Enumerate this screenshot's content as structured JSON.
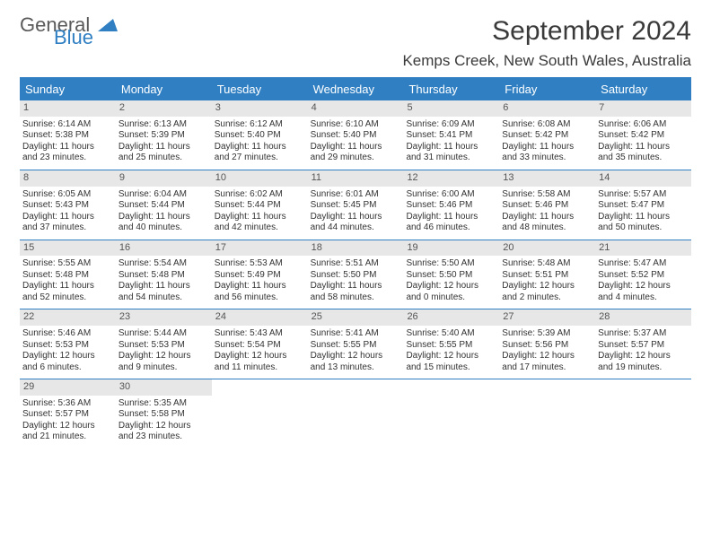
{
  "logo": {
    "part1": "General",
    "part2": "Blue"
  },
  "title": "September 2024",
  "location": "Kemps Creek, New South Wales, Australia",
  "colors": {
    "accent": "#2f7fc2",
    "dow_bg": "#2f7fc2",
    "dow_text": "#ffffff",
    "daynum_bg": "#e7e7e7",
    "text": "#333333",
    "title_color": "#3a3a3a"
  },
  "daysOfWeek": [
    "Sunday",
    "Monday",
    "Tuesday",
    "Wednesday",
    "Thursday",
    "Friday",
    "Saturday"
  ],
  "weeks": [
    [
      {
        "n": "1",
        "l1": "Sunrise: 6:14 AM",
        "l2": "Sunset: 5:38 PM",
        "l3": "Daylight: 11 hours",
        "l4": "and 23 minutes."
      },
      {
        "n": "2",
        "l1": "Sunrise: 6:13 AM",
        "l2": "Sunset: 5:39 PM",
        "l3": "Daylight: 11 hours",
        "l4": "and 25 minutes."
      },
      {
        "n": "3",
        "l1": "Sunrise: 6:12 AM",
        "l2": "Sunset: 5:40 PM",
        "l3": "Daylight: 11 hours",
        "l4": "and 27 minutes."
      },
      {
        "n": "4",
        "l1": "Sunrise: 6:10 AM",
        "l2": "Sunset: 5:40 PM",
        "l3": "Daylight: 11 hours",
        "l4": "and 29 minutes."
      },
      {
        "n": "5",
        "l1": "Sunrise: 6:09 AM",
        "l2": "Sunset: 5:41 PM",
        "l3": "Daylight: 11 hours",
        "l4": "and 31 minutes."
      },
      {
        "n": "6",
        "l1": "Sunrise: 6:08 AM",
        "l2": "Sunset: 5:42 PM",
        "l3": "Daylight: 11 hours",
        "l4": "and 33 minutes."
      },
      {
        "n": "7",
        "l1": "Sunrise: 6:06 AM",
        "l2": "Sunset: 5:42 PM",
        "l3": "Daylight: 11 hours",
        "l4": "and 35 minutes."
      }
    ],
    [
      {
        "n": "8",
        "l1": "Sunrise: 6:05 AM",
        "l2": "Sunset: 5:43 PM",
        "l3": "Daylight: 11 hours",
        "l4": "and 37 minutes."
      },
      {
        "n": "9",
        "l1": "Sunrise: 6:04 AM",
        "l2": "Sunset: 5:44 PM",
        "l3": "Daylight: 11 hours",
        "l4": "and 40 minutes."
      },
      {
        "n": "10",
        "l1": "Sunrise: 6:02 AM",
        "l2": "Sunset: 5:44 PM",
        "l3": "Daylight: 11 hours",
        "l4": "and 42 minutes."
      },
      {
        "n": "11",
        "l1": "Sunrise: 6:01 AM",
        "l2": "Sunset: 5:45 PM",
        "l3": "Daylight: 11 hours",
        "l4": "and 44 minutes."
      },
      {
        "n": "12",
        "l1": "Sunrise: 6:00 AM",
        "l2": "Sunset: 5:46 PM",
        "l3": "Daylight: 11 hours",
        "l4": "and 46 minutes."
      },
      {
        "n": "13",
        "l1": "Sunrise: 5:58 AM",
        "l2": "Sunset: 5:46 PM",
        "l3": "Daylight: 11 hours",
        "l4": "and 48 minutes."
      },
      {
        "n": "14",
        "l1": "Sunrise: 5:57 AM",
        "l2": "Sunset: 5:47 PM",
        "l3": "Daylight: 11 hours",
        "l4": "and 50 minutes."
      }
    ],
    [
      {
        "n": "15",
        "l1": "Sunrise: 5:55 AM",
        "l2": "Sunset: 5:48 PM",
        "l3": "Daylight: 11 hours",
        "l4": "and 52 minutes."
      },
      {
        "n": "16",
        "l1": "Sunrise: 5:54 AM",
        "l2": "Sunset: 5:48 PM",
        "l3": "Daylight: 11 hours",
        "l4": "and 54 minutes."
      },
      {
        "n": "17",
        "l1": "Sunrise: 5:53 AM",
        "l2": "Sunset: 5:49 PM",
        "l3": "Daylight: 11 hours",
        "l4": "and 56 minutes."
      },
      {
        "n": "18",
        "l1": "Sunrise: 5:51 AM",
        "l2": "Sunset: 5:50 PM",
        "l3": "Daylight: 11 hours",
        "l4": "and 58 minutes."
      },
      {
        "n": "19",
        "l1": "Sunrise: 5:50 AM",
        "l2": "Sunset: 5:50 PM",
        "l3": "Daylight: 12 hours",
        "l4": "and 0 minutes."
      },
      {
        "n": "20",
        "l1": "Sunrise: 5:48 AM",
        "l2": "Sunset: 5:51 PM",
        "l3": "Daylight: 12 hours",
        "l4": "and 2 minutes."
      },
      {
        "n": "21",
        "l1": "Sunrise: 5:47 AM",
        "l2": "Sunset: 5:52 PM",
        "l3": "Daylight: 12 hours",
        "l4": "and 4 minutes."
      }
    ],
    [
      {
        "n": "22",
        "l1": "Sunrise: 5:46 AM",
        "l2": "Sunset: 5:53 PM",
        "l3": "Daylight: 12 hours",
        "l4": "and 6 minutes."
      },
      {
        "n": "23",
        "l1": "Sunrise: 5:44 AM",
        "l2": "Sunset: 5:53 PM",
        "l3": "Daylight: 12 hours",
        "l4": "and 9 minutes."
      },
      {
        "n": "24",
        "l1": "Sunrise: 5:43 AM",
        "l2": "Sunset: 5:54 PM",
        "l3": "Daylight: 12 hours",
        "l4": "and 11 minutes."
      },
      {
        "n": "25",
        "l1": "Sunrise: 5:41 AM",
        "l2": "Sunset: 5:55 PM",
        "l3": "Daylight: 12 hours",
        "l4": "and 13 minutes."
      },
      {
        "n": "26",
        "l1": "Sunrise: 5:40 AM",
        "l2": "Sunset: 5:55 PM",
        "l3": "Daylight: 12 hours",
        "l4": "and 15 minutes."
      },
      {
        "n": "27",
        "l1": "Sunrise: 5:39 AM",
        "l2": "Sunset: 5:56 PM",
        "l3": "Daylight: 12 hours",
        "l4": "and 17 minutes."
      },
      {
        "n": "28",
        "l1": "Sunrise: 5:37 AM",
        "l2": "Sunset: 5:57 PM",
        "l3": "Daylight: 12 hours",
        "l4": "and 19 minutes."
      }
    ],
    [
      {
        "n": "29",
        "l1": "Sunrise: 5:36 AM",
        "l2": "Sunset: 5:57 PM",
        "l3": "Daylight: 12 hours",
        "l4": "and 21 minutes."
      },
      {
        "n": "30",
        "l1": "Sunrise: 5:35 AM",
        "l2": "Sunset: 5:58 PM",
        "l3": "Daylight: 12 hours",
        "l4": "and 23 minutes."
      },
      {
        "empty": true
      },
      {
        "empty": true
      },
      {
        "empty": true
      },
      {
        "empty": true
      },
      {
        "empty": true
      }
    ]
  ]
}
